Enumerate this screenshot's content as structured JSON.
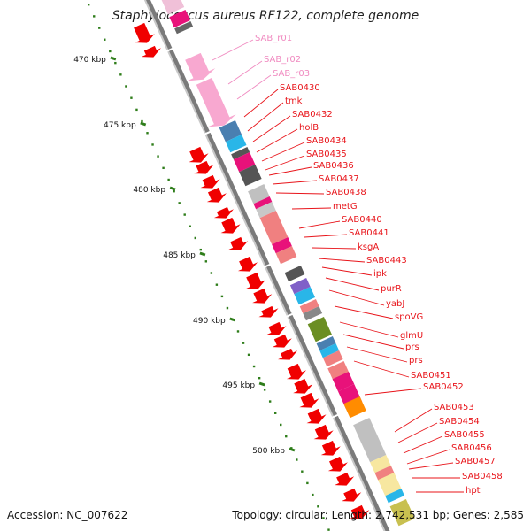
{
  "title": "Staphylococcus aureus RF122, complete genome",
  "footer": {
    "accession": "Accession: NC_007622",
    "topology": "Topology: circular; Length: 2,742,531 bp; Genes: 2,585"
  },
  "colors": {
    "backbone": "#9a9a9a",
    "ticks": "#2e7d1a",
    "gene_label": "#e8141a",
    "rna_label": "#f08ac0",
    "cds_arrow": "#f00000"
  },
  "scale": {
    "unit": "kbp",
    "ticks": [
      {
        "label": "470 kbp"
      },
      {
        "label": "475 kbp"
      },
      {
        "label": "480 kbp"
      },
      {
        "label": "485 kbp"
      },
      {
        "label": "490 kbp"
      },
      {
        "label": "495 kbp"
      },
      {
        "label": "500 kbp"
      }
    ]
  },
  "features": [
    {
      "name": "SAB_r01",
      "type": "rRNA"
    },
    {
      "name": "SAB_r02",
      "type": "rRNA"
    },
    {
      "name": "SAB_r03",
      "type": "rRNA"
    },
    {
      "name": "SAB0430",
      "type": "CDS"
    },
    {
      "name": "tmk",
      "type": "CDS"
    },
    {
      "name": "SAB0432",
      "type": "CDS"
    },
    {
      "name": "holB",
      "type": "CDS"
    },
    {
      "name": "SAB0434",
      "type": "CDS"
    },
    {
      "name": "SAB0435",
      "type": "CDS"
    },
    {
      "name": "SAB0436",
      "type": "CDS"
    },
    {
      "name": "SAB0437",
      "type": "CDS"
    },
    {
      "name": "SAB0438",
      "type": "CDS"
    },
    {
      "name": "metG",
      "type": "CDS"
    },
    {
      "name": "SAB0440",
      "type": "CDS"
    },
    {
      "name": "SAB0441",
      "type": "CDS"
    },
    {
      "name": "ksgA",
      "type": "CDS"
    },
    {
      "name": "SAB0443",
      "type": "CDS"
    },
    {
      "name": "ipk",
      "type": "CDS"
    },
    {
      "name": "purR",
      "type": "CDS"
    },
    {
      "name": "yabJ",
      "type": "CDS"
    },
    {
      "name": "spoVG",
      "type": "CDS"
    },
    {
      "name": "glmU",
      "type": "CDS"
    },
    {
      "name": "prs",
      "type": "CDS"
    },
    {
      "name": "prs",
      "type": "CDS"
    },
    {
      "name": "SAB0451",
      "type": "CDS"
    },
    {
      "name": "SAB0452",
      "type": "CDS"
    },
    {
      "name": "SAB0453",
      "type": "CDS"
    },
    {
      "name": "SAB0454",
      "type": "CDS"
    },
    {
      "name": "SAB0455",
      "type": "CDS"
    },
    {
      "name": "SAB0456",
      "type": "CDS"
    },
    {
      "name": "SAB0457",
      "type": "CDS"
    },
    {
      "name": "SAB0458",
      "type": "CDS"
    },
    {
      "name": "hpt",
      "type": "CDS"
    }
  ]
}
